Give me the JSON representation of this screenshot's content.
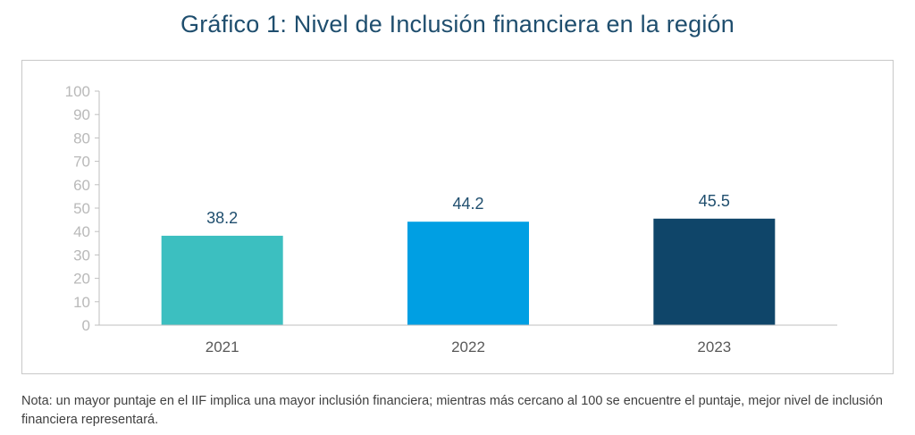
{
  "chart_data": {
    "type": "bar",
    "title": "Gráfico 1: Nivel de Inclusión financiera en la región",
    "categories": [
      "2021",
      "2022",
      "2023"
    ],
    "values": [
      38.2,
      44.2,
      45.5
    ],
    "value_labels": [
      "38.2",
      "44.2",
      "45.5"
    ],
    "bar_colors": [
      "#3cbfc0",
      "#009fe3",
      "#0f4569"
    ],
    "xlabel": "",
    "ylabel": "",
    "ylim": [
      0,
      100
    ],
    "yticks": [
      0,
      10,
      20,
      30,
      40,
      50,
      60,
      70,
      80,
      90,
      100
    ],
    "ytick_labels": [
      "0",
      "10",
      "20",
      "30",
      "40",
      "50",
      "60",
      "70",
      "80",
      "90",
      "100"
    ],
    "grid": false,
    "legend": "none"
  },
  "note": "Nota: un mayor puntaje en el IIF implica una mayor inclusión financiera; mientras más cercano al 100 se encuentre el puntaje, mejor nivel de inclusión financiera representará.",
  "colors": {
    "title": "#1f4e6e",
    "axis": "#bfbfbf",
    "tick_text": "#b9b9b9",
    "category_text": "#595959",
    "data_label": "#1f4e6e",
    "frame_border": "#c8c8c8"
  }
}
